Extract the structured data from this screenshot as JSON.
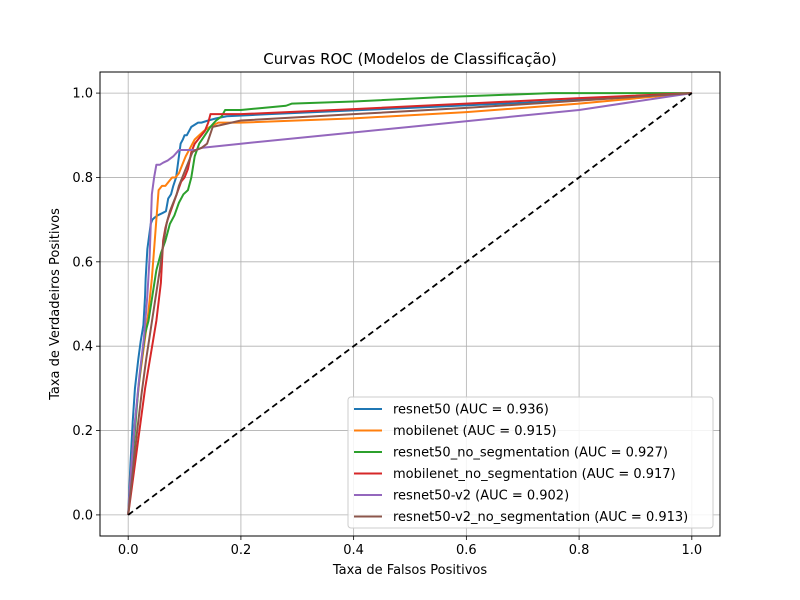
{
  "chart_data": {
    "type": "line",
    "title": "Curvas ROC (Modelos de Classificação)",
    "xlabel": "Taxa de Falsos Positivos",
    "ylabel": "Taxa de Verdadeiros Positivos",
    "xlim": [
      -0.05,
      1.05
    ],
    "ylim": [
      -0.05,
      1.05
    ],
    "xticks": [
      0.0,
      0.2,
      0.4,
      0.6,
      0.8,
      1.0
    ],
    "yticks": [
      0.0,
      0.2,
      0.4,
      0.6,
      0.8,
      1.0
    ],
    "xtick_labels": [
      "0.0",
      "0.2",
      "0.4",
      "0.6",
      "0.8",
      "1.0"
    ],
    "ytick_labels": [
      "0.0",
      "0.2",
      "0.4",
      "0.6",
      "0.8",
      "1.0"
    ],
    "grid": true,
    "legend_position": "lower-right",
    "series": [
      {
        "name": "resnet50 (AUC = 0.936)",
        "color": "#1f77b4",
        "x": [
          0,
          0.004,
          0.008,
          0.012,
          0.018,
          0.022,
          0.027,
          0.03,
          0.031,
          0.034,
          0.037,
          0.04,
          0.043,
          0.047,
          0.052,
          0.06,
          0.067,
          0.071,
          0.076,
          0.08,
          0.085,
          0.09,
          0.093,
          0.097,
          0.1,
          0.104,
          0.108,
          0.112,
          0.118,
          0.124,
          0.13,
          0.142,
          0.156,
          0.175,
          0.25,
          0.5,
          0.75,
          1.0
        ],
        "y": [
          0,
          0.12,
          0.22,
          0.3,
          0.37,
          0.41,
          0.45,
          0.52,
          0.56,
          0.63,
          0.66,
          0.69,
          0.7,
          0.705,
          0.71,
          0.715,
          0.72,
          0.75,
          0.76,
          0.78,
          0.8,
          0.85,
          0.88,
          0.89,
          0.9,
          0.9,
          0.91,
          0.92,
          0.925,
          0.93,
          0.93,
          0.935,
          0.94,
          0.945,
          0.95,
          0.965,
          0.98,
          1.0
        ]
      },
      {
        "name": "mobilenet (AUC = 0.915)",
        "color": "#ff7f0e",
        "x": [
          0,
          0.006,
          0.012,
          0.02,
          0.028,
          0.035,
          0.042,
          0.046,
          0.05,
          0.054,
          0.06,
          0.066,
          0.072,
          0.078,
          0.084,
          0.09,
          0.096,
          0.102,
          0.11,
          0.118,
          0.126,
          0.134,
          0.145,
          0.16,
          0.2,
          0.4,
          0.6,
          0.8,
          1.0
        ],
        "y": [
          0,
          0.12,
          0.22,
          0.32,
          0.4,
          0.47,
          0.56,
          0.63,
          0.7,
          0.77,
          0.78,
          0.78,
          0.79,
          0.8,
          0.8,
          0.81,
          0.83,
          0.85,
          0.87,
          0.89,
          0.9,
          0.91,
          0.92,
          0.93,
          0.93,
          0.94,
          0.955,
          0.975,
          1.0
        ]
      },
      {
        "name": "resnet50_no_segmentation (AUC = 0.927)",
        "color": "#2ca02c",
        "x": [
          0,
          0.006,
          0.012,
          0.018,
          0.024,
          0.03,
          0.036,
          0.043,
          0.05,
          0.058,
          0.066,
          0.074,
          0.082,
          0.09,
          0.098,
          0.106,
          0.112,
          0.118,
          0.126,
          0.136,
          0.146,
          0.156,
          0.166,
          0.172,
          0.2,
          0.24,
          0.28,
          0.29,
          0.4,
          0.55,
          0.75,
          0.85,
          1.0
        ],
        "y": [
          0,
          0.1,
          0.2,
          0.3,
          0.37,
          0.43,
          0.46,
          0.52,
          0.58,
          0.62,
          0.65,
          0.69,
          0.71,
          0.74,
          0.76,
          0.77,
          0.8,
          0.85,
          0.88,
          0.9,
          0.92,
          0.935,
          0.945,
          0.96,
          0.96,
          0.965,
          0.97,
          0.975,
          0.98,
          0.99,
          1.0,
          1.0,
          1.0
        ]
      },
      {
        "name": "mobilenet_no_segmentation (AUC = 0.917)",
        "color": "#d62728",
        "x": [
          0,
          0.01,
          0.02,
          0.03,
          0.04,
          0.05,
          0.058,
          0.062,
          0.066,
          0.07,
          0.078,
          0.086,
          0.094,
          0.1,
          0.106,
          0.112,
          0.118,
          0.124,
          0.13,
          0.136,
          0.142,
          0.146,
          0.16,
          0.2,
          0.4,
          0.6,
          0.8,
          1.0
        ],
        "y": [
          0,
          0.1,
          0.2,
          0.3,
          0.38,
          0.46,
          0.55,
          0.65,
          0.68,
          0.7,
          0.73,
          0.76,
          0.79,
          0.8,
          0.82,
          0.86,
          0.88,
          0.89,
          0.9,
          0.91,
          0.93,
          0.95,
          0.95,
          0.95,
          0.962,
          0.975,
          0.988,
          1.0
        ]
      },
      {
        "name": "resnet50-v2 (AUC = 0.902)",
        "color": "#9467bd",
        "x": [
          0,
          0.006,
          0.012,
          0.02,
          0.028,
          0.034,
          0.038,
          0.042,
          0.046,
          0.05,
          0.056,
          0.062,
          0.07,
          0.08,
          0.09,
          0.1,
          0.11,
          0.12,
          0.13,
          0.2,
          0.35,
          0.5,
          0.65,
          0.8,
          1.0
        ],
        "y": [
          0,
          0.12,
          0.22,
          0.33,
          0.42,
          0.52,
          0.61,
          0.76,
          0.8,
          0.83,
          0.83,
          0.835,
          0.84,
          0.85,
          0.865,
          0.865,
          0.865,
          0.865,
          0.87,
          0.88,
          0.9,
          0.92,
          0.94,
          0.96,
          1.0
        ]
      },
      {
        "name": "resnet50-v2_no_segmentation (AUC = 0.913)",
        "color": "#8c564b",
        "x": [
          0,
          0.008,
          0.016,
          0.024,
          0.032,
          0.04,
          0.048,
          0.056,
          0.062,
          0.068,
          0.074,
          0.08,
          0.086,
          0.09,
          0.096,
          0.102,
          0.108,
          0.114,
          0.12,
          0.13,
          0.14,
          0.15,
          0.2,
          0.4,
          0.6,
          0.8,
          1.0
        ],
        "y": [
          0,
          0.1,
          0.2,
          0.29,
          0.37,
          0.44,
          0.51,
          0.58,
          0.64,
          0.69,
          0.72,
          0.74,
          0.76,
          0.78,
          0.8,
          0.82,
          0.84,
          0.86,
          0.865,
          0.87,
          0.88,
          0.92,
          0.935,
          0.95,
          0.965,
          0.982,
          1.0
        ]
      }
    ],
    "reference_line": {
      "name": "chance",
      "color": "#000000",
      "x": [
        0,
        1
      ],
      "y": [
        0,
        1
      ]
    }
  }
}
